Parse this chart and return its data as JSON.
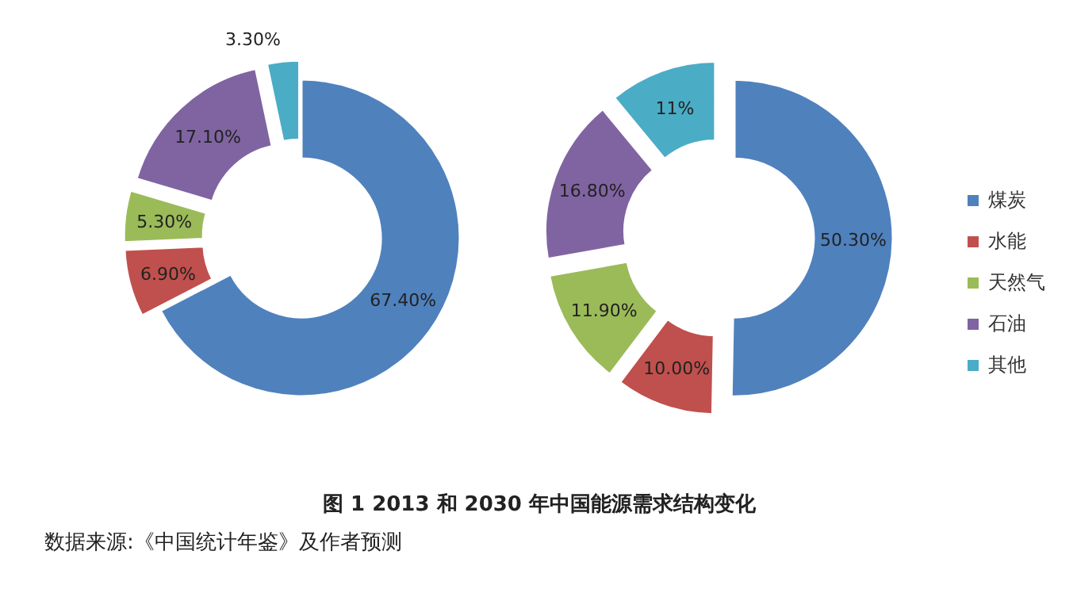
{
  "chart_data": [
    {
      "type": "donut",
      "categories": [
        null,
        null,
        null,
        null,
        null
      ],
      "values": [
        67.4,
        6.9,
        5.3,
        17.1,
        3.3
      ],
      "value_labels": [
        "67.40%",
        "6.90%",
        "5.30%",
        "17.10%",
        "3.30%"
      ],
      "colors": [
        "#4f81bd",
        "#c0504d",
        "#9bbb59",
        "#8064a2",
        "#4bacc6"
      ],
      "annotations": [
        "图 1 2013 和 2030 年中国能源需求结构变化",
        "数据来源:《中国统计年鉴》及作者预测"
      ]
    },
    {
      "type": "donut",
      "categories": [
        "煤炭",
        "水能",
        "天然气",
        "石油",
        "其他"
      ],
      "values": [
        50.3,
        10.0,
        11.9,
        16.8,
        11
      ],
      "value_labels": [
        "50.30%",
        "10.00%",
        "11.90%",
        "16.80%",
        "11%"
      ],
      "colors": [
        "#4f81bd",
        "#c0504d",
        "#9bbb59",
        "#8064a2",
        "#4bacc6"
      ],
      "legend": "right"
    }
  ]
}
